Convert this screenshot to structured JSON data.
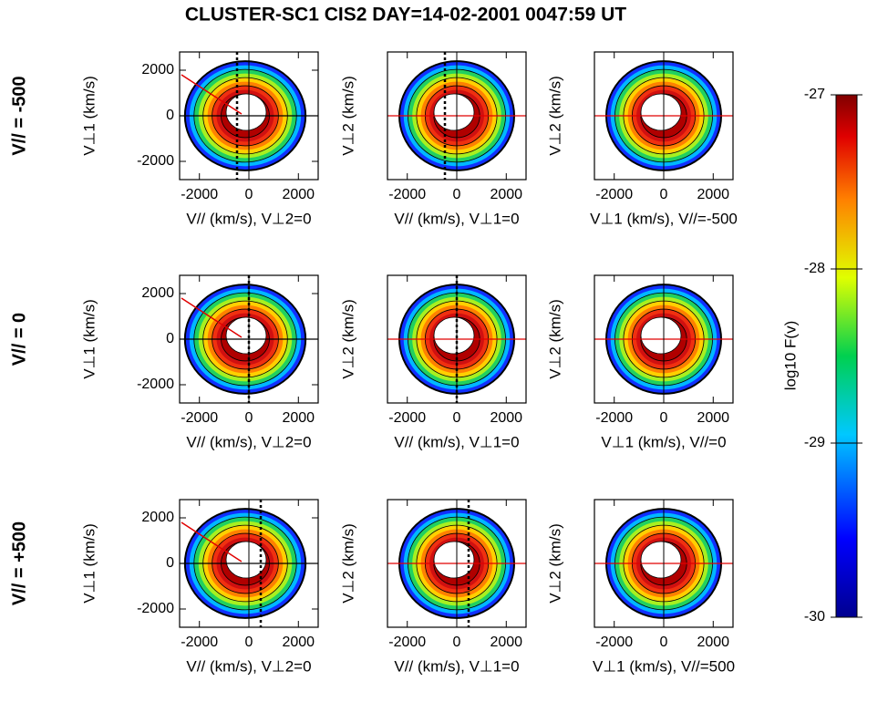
{
  "title": "CLUSTER-SC1 CIS2  DAY=14-02-2001  0047:59 UT",
  "row_labels": [
    "V// = -500",
    "V// = 0",
    "V// = +500"
  ],
  "chart_data": [
    {
      "type": "contour",
      "xlabel": "V// (km/s), V⊥2=0",
      "ylabel": "V⊥1 (km/s)",
      "xlim": [
        -2800,
        2800
      ],
      "ylim": [
        -2800,
        2800
      ],
      "xticks": [
        -2000,
        0,
        2000
      ],
      "yticks": [
        -2000,
        0,
        2000
      ]
    },
    {
      "type": "contour",
      "xlabel": "V// (km/s), V⊥1=0",
      "ylabel": "V⊥2 (km/s)",
      "xlim": [
        -2800,
        2800
      ],
      "ylim": [
        -2800,
        2800
      ],
      "xticks": [
        -2000,
        0,
        2000
      ]
    },
    {
      "type": "contour",
      "xlabel": "V⊥1 (km/s), V//=-500",
      "ylabel": "V⊥2 (km/s)",
      "xlim": [
        -2800,
        2800
      ],
      "ylim": [
        -2800,
        2800
      ],
      "xticks": [
        -2000,
        0,
        2000
      ]
    },
    {
      "type": "contour",
      "xlabel": "V// (km/s), V⊥2=0",
      "ylabel": "V⊥1 (km/s)",
      "xlim": [
        -2800,
        2800
      ],
      "ylim": [
        -2800,
        2800
      ],
      "xticks": [
        -2000,
        0,
        2000
      ],
      "yticks": [
        -2000,
        0,
        2000
      ]
    },
    {
      "type": "contour",
      "xlabel": "V// (km/s), V⊥1=0",
      "ylabel": "V⊥2 (km/s)",
      "xlim": [
        -2800,
        2800
      ],
      "ylim": [
        -2800,
        2800
      ],
      "xticks": [
        -2000,
        0,
        2000
      ]
    },
    {
      "type": "contour",
      "xlabel": "V⊥1 (km/s), V//=0",
      "ylabel": "V⊥2 (km/s)",
      "xlim": [
        -2800,
        2800
      ],
      "ylim": [
        -2800,
        2800
      ],
      "xticks": [
        -2000,
        0,
        2000
      ]
    },
    {
      "type": "contour",
      "xlabel": "V// (km/s), V⊥2=0",
      "ylabel": "V⊥1 (km/s)",
      "xlim": [
        -2800,
        2800
      ],
      "ylim": [
        -2800,
        2800
      ],
      "xticks": [
        -2000,
        0,
        2000
      ],
      "yticks": [
        -2000,
        0,
        2000
      ]
    },
    {
      "type": "contour",
      "xlabel": "V// (km/s), V⊥1=0",
      "ylabel": "V⊥2 (km/s)",
      "xlim": [
        -2800,
        2800
      ],
      "ylim": [
        -2800,
        2800
      ],
      "xticks": [
        -2000,
        0,
        2000
      ]
    },
    {
      "type": "contour",
      "xlabel": "V⊥1 (km/s), V//=500",
      "ylabel": "V⊥2 (km/s)",
      "xlim": [
        -2800,
        2800
      ],
      "ylim": [
        -2800,
        2800
      ],
      "xticks": [
        -2000,
        0,
        2000
      ]
    },
    {
      "type": "colorbar",
      "label": "log10 F(v)",
      "ylim": [
        -30,
        -27
      ],
      "yticks": [
        -30,
        -29,
        -28,
        -27
      ]
    }
  ]
}
